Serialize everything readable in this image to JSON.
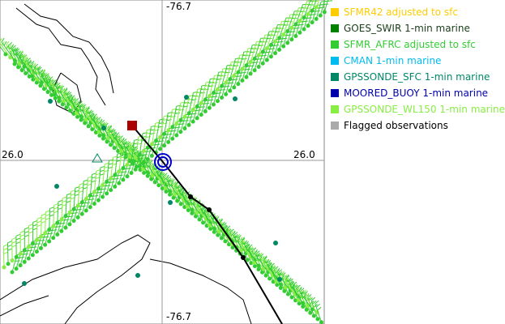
{
  "map": {
    "axis_labels": {
      "top": "-76.7",
      "bottom": "-76.7",
      "left": "26.0",
      "right": "26.0"
    },
    "legend": [
      {
        "label": "SFMR42 adjusted to sfc",
        "color": "#ffcc00",
        "text_color": "#ffcc00"
      },
      {
        "label": "GOES_SWIR 1-min marine",
        "color": "#008000",
        "text_color": "#1a3d1a"
      },
      {
        "label": "SFMR_AFRC adjusted to sfc",
        "color": "#33cc33",
        "text_color": "#33cc33"
      },
      {
        "label": "CMAN 1-min marine",
        "color": "#00bbee",
        "text_color": "#00bbee"
      },
      {
        "label": "GPSSONDE_SFC 1-min marine",
        "color": "#008866",
        "text_color": "#008866"
      },
      {
        "label": "MOORED_BUOY 1-min marine",
        "color": "#0000aa",
        "text_color": "#0000aa"
      },
      {
        "label": "GPSSONDE_WL150 1-min marine",
        "color": "#88ee44",
        "text_color": "#88ee44"
      },
      {
        "label": "Flagged observations",
        "color": "#aaaaaa",
        "text_color": "#000000"
      }
    ]
  }
}
